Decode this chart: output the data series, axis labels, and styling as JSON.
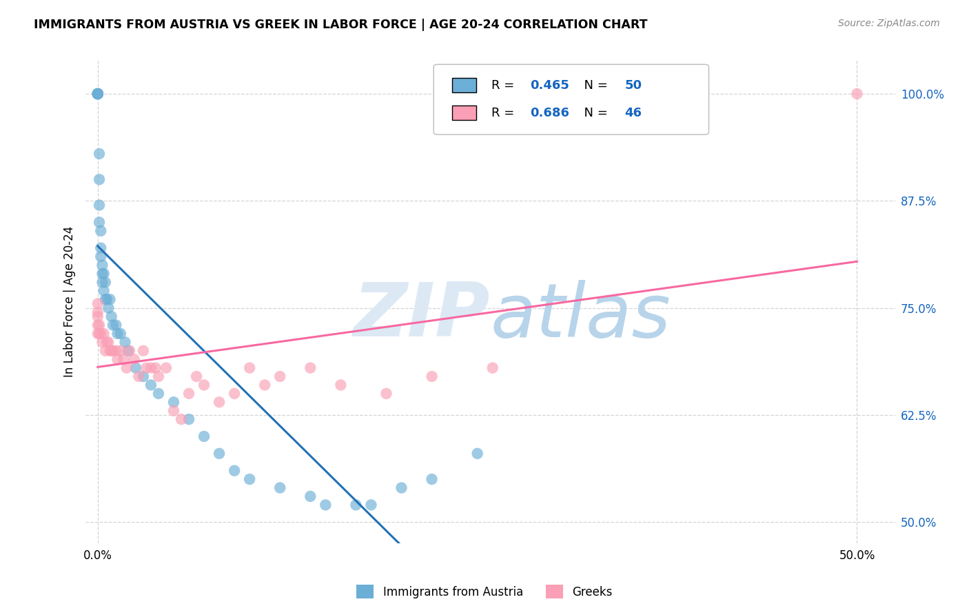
{
  "title": "IMMIGRANTS FROM AUSTRIA VS GREEK IN LABOR FORCE | AGE 20-24 CORRELATION CHART",
  "source": "Source: ZipAtlas.com",
  "ylabel": "In Labor Force | Age 20-24",
  "R_austria": 0.465,
  "N_austria": 50,
  "R_greek": 0.686,
  "N_greek": 46,
  "color_austria": "#6baed6",
  "color_greek": "#fa9fb5",
  "color_austria_line": "#2171b5",
  "color_greek_line": "#f768a1",
  "legend_austria": "Immigrants from Austria",
  "legend_greek": "Greeks",
  "blue_text": "#1565C0",
  "watermark_color": "#dce9f5",
  "austria_x": [
    0.0,
    0.0,
    0.0,
    0.0,
    0.0,
    0.0,
    0.0,
    0.0,
    0.001,
    0.001,
    0.001,
    0.001,
    0.002,
    0.002,
    0.002,
    0.003,
    0.003,
    0.003,
    0.004,
    0.004,
    0.005,
    0.005,
    0.006,
    0.007,
    0.008,
    0.009,
    0.01,
    0.012,
    0.013,
    0.015,
    0.018,
    0.02,
    0.025,
    0.03,
    0.035,
    0.04,
    0.05,
    0.06,
    0.07,
    0.08,
    0.09,
    0.1,
    0.12,
    0.14,
    0.15,
    0.17,
    0.18,
    0.2,
    0.22,
    0.25
  ],
  "austria_y": [
    1.0,
    1.0,
    1.0,
    1.0,
    1.0,
    1.0,
    1.0,
    1.0,
    0.93,
    0.9,
    0.87,
    0.85,
    0.84,
    0.82,
    0.81,
    0.8,
    0.79,
    0.78,
    0.79,
    0.77,
    0.78,
    0.76,
    0.76,
    0.75,
    0.76,
    0.74,
    0.73,
    0.73,
    0.72,
    0.72,
    0.71,
    0.7,
    0.68,
    0.67,
    0.66,
    0.65,
    0.64,
    0.62,
    0.6,
    0.58,
    0.56,
    0.55,
    0.54,
    0.53,
    0.52,
    0.52,
    0.52,
    0.54,
    0.55,
    0.58
  ],
  "greek_x": [
    0.0,
    0.0,
    0.0,
    0.0,
    0.0,
    0.001,
    0.001,
    0.002,
    0.003,
    0.004,
    0.005,
    0.006,
    0.007,
    0.008,
    0.009,
    0.01,
    0.012,
    0.013,
    0.015,
    0.017,
    0.019,
    0.021,
    0.024,
    0.027,
    0.03,
    0.032,
    0.035,
    0.038,
    0.04,
    0.045,
    0.05,
    0.055,
    0.06,
    0.065,
    0.07,
    0.08,
    0.09,
    0.1,
    0.11,
    0.12,
    0.14,
    0.16,
    0.19,
    0.22,
    0.26,
    0.5
  ],
  "greek_y": [
    0.755,
    0.745,
    0.74,
    0.73,
    0.72,
    0.73,
    0.72,
    0.72,
    0.71,
    0.72,
    0.7,
    0.71,
    0.71,
    0.7,
    0.7,
    0.7,
    0.7,
    0.69,
    0.7,
    0.69,
    0.68,
    0.7,
    0.69,
    0.67,
    0.7,
    0.68,
    0.68,
    0.68,
    0.67,
    0.68,
    0.63,
    0.62,
    0.65,
    0.67,
    0.66,
    0.64,
    0.65,
    0.68,
    0.66,
    0.67,
    0.68,
    0.66,
    0.65,
    0.67,
    0.68,
    1.0
  ],
  "xlim": [
    -0.008,
    0.525
  ],
  "ylim": [
    0.475,
    1.04
  ],
  "xticks": [
    0.0,
    0.5
  ],
  "xtick_labels": [
    "0.0%",
    "50.0%"
  ],
  "yticks": [
    0.5,
    0.625,
    0.75,
    0.875,
    1.0
  ],
  "ytick_labels": [
    "50.0%",
    "62.5%",
    "75.0%",
    "87.5%",
    "100.0%"
  ]
}
